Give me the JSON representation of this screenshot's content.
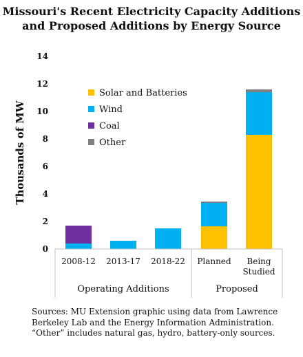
{
  "title_line1": "Missouri's Recent Electricity Capacity Additions",
  "title_line2": "and Proposed Additions by Energy Source",
  "source_note": "Sources: MU Extension graphic using data from Lawrence Berkeley Lab and the Energy Information Administration. “Other” includes natural gas, hydro, battery-only sources.",
  "chart_data": {
    "type": "bar",
    "stacked": true,
    "categories": [
      "2008-12",
      "2013-17",
      "2018-22",
      "Planned",
      "Being\nStudied"
    ],
    "groups": [
      {
        "label": "Operating Additions",
        "categories": [
          "2008-12",
          "2013-17",
          "2018-22"
        ]
      },
      {
        "label": "Proposed",
        "categories": [
          "Planned",
          "Being\nStudied"
        ]
      }
    ],
    "series": [
      {
        "name": "Solar and Batteries",
        "color": "#FFC000",
        "values": [
          0,
          0,
          0,
          1.65,
          8.3
        ]
      },
      {
        "name": "Wind",
        "color": "#00B0F0",
        "values": [
          0.4,
          0.6,
          1.5,
          1.7,
          3.1
        ]
      },
      {
        "name": "Coal",
        "color": "#7030A0",
        "values": [
          1.3,
          0,
          0,
          0,
          0
        ]
      },
      {
        "name": "Other",
        "color": "#808080",
        "values": [
          0,
          0,
          0,
          0.1,
          0.2
        ]
      }
    ],
    "ylabel": "Thousands of MW",
    "ylim": [
      0,
      14
    ],
    "yticks": [
      0,
      2,
      4,
      6,
      8,
      10,
      12,
      14
    ],
    "grid": false,
    "legend": "top-left"
  }
}
